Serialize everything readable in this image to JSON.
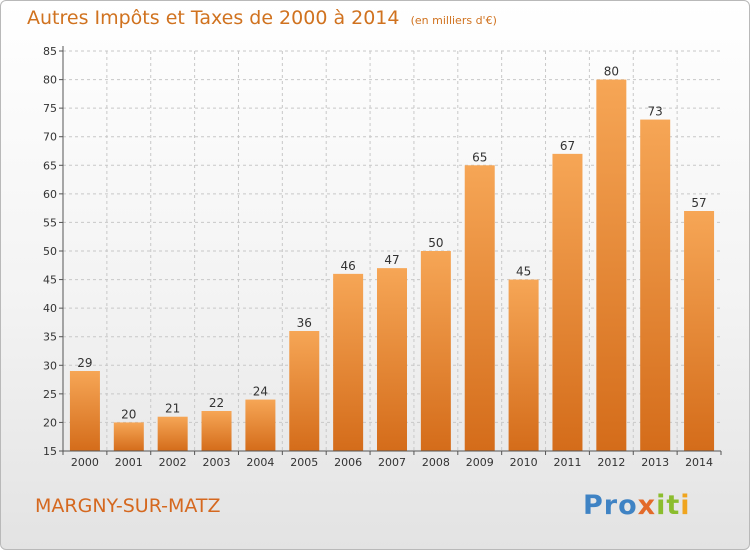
{
  "title": "Autres Impôts et Taxes de 2000 à 2014",
  "subtitle": "(en milliers d'€)",
  "commune": "MARGNY-SUR-MATZ",
  "logo": {
    "text": "Proxiti",
    "parts": [
      "Pro",
      "x",
      "it",
      "i"
    ],
    "colors": [
      "#3f83c4",
      "#e36a2a",
      "#8bbd2e",
      "#f0a51e"
    ]
  },
  "colors": {
    "accent": "#d0721f",
    "bar_top": "#f6a656",
    "bar_bottom": "#d46c1a",
    "grid": "#c8c8c8"
  },
  "chart_data": {
    "type": "bar",
    "title": "Autres Impôts et Taxes de 2000 à 2014",
    "subtitle": "(en milliers d'€)",
    "xlabel": "",
    "ylabel": "",
    "categories": [
      "2000",
      "2001",
      "2002",
      "2003",
      "2004",
      "2005",
      "2006",
      "2007",
      "2008",
      "2009",
      "2010",
      "2011",
      "2012",
      "2013",
      "2014"
    ],
    "values": [
      29,
      20,
      21,
      22,
      24,
      36,
      46,
      47,
      50,
      65,
      45,
      67,
      80,
      73,
      57
    ],
    "ylim": [
      15,
      85
    ],
    "yticks": [
      15,
      20,
      25,
      30,
      35,
      40,
      45,
      50,
      55,
      60,
      65,
      70,
      75,
      80,
      85
    ],
    "grid": true,
    "grid_style": "dashed"
  }
}
